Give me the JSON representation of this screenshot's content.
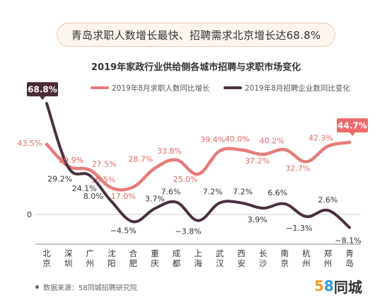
{
  "headline": "青岛求职人数增长最快、招聘需求北京增长达68.8%",
  "source_text": "数据来源：58同城招聘研究院",
  "logo": {
    "digit1": "5",
    "digit2": "8",
    "text": "同城"
  },
  "chart_data": {
    "type": "line",
    "title": "2019年家政行业供给侧各城市招聘与求职市场变化",
    "legend_position": "top",
    "zero_label": "0",
    "categories": [
      "北京",
      "深圳",
      "广州",
      "沈阳",
      "合肥",
      "重庆",
      "成都",
      "上海",
      "武汉",
      "西安",
      "长沙",
      "南京",
      "杭州",
      "郑州",
      "青岛"
    ],
    "category_lines": [
      [
        "北",
        "京"
      ],
      [
        "深",
        "圳"
      ],
      [
        "广",
        "州"
      ],
      [
        "沈",
        "阳"
      ],
      [
        "合",
        "肥"
      ],
      [
        "重",
        "庆"
      ],
      [
        "成",
        "都"
      ],
      [
        "上",
        "海"
      ],
      [
        "武",
        "汉"
      ],
      [
        "西",
        "安"
      ],
      [
        "长",
        "沙"
      ],
      [
        "南",
        "京"
      ],
      [
        "杭",
        "州"
      ],
      [
        "郑",
        "州"
      ],
      [
        "青",
        "岛"
      ]
    ],
    "series": [
      {
        "name": "2019年8月求职人数同比增长",
        "color": "#e77b7b",
        "values": [
          43.5,
          29.9,
          27.5,
          16.5,
          17.0,
          28.7,
          33.8,
          25.0,
          39.4,
          40.0,
          37.2,
          40.2,
          32.7,
          42.3,
          44.7
        ],
        "labels": [
          "43.5%",
          "29.9%",
          "27.5%",
          "16.5%",
          "17.0%",
          "28.7%",
          "33.8%",
          "25.0%",
          "39.4%",
          "40.0%",
          "37.2%",
          "40.2%",
          "32.7%",
          "42.3%",
          "44.7%"
        ]
      },
      {
        "name": "2019年8月招聘企业数同比变化",
        "color": "#4a3040",
        "values": [
          68.8,
          29.2,
          24.1,
          8.0,
          -4.5,
          3.7,
          7.6,
          -3.8,
          7.2,
          7.2,
          3.9,
          6.6,
          -1.3,
          2.6,
          -8.1
        ],
        "labels": [
          "68.8%",
          "29.2%",
          "24.1%",
          "8.0%",
          "−4.5%",
          "3.7%",
          "7.6%",
          "−3.8%",
          "7.2%",
          "7.2%",
          "3.9%",
          "6.6%",
          "−1.3%",
          "2.6%",
          "−8.1%"
        ]
      }
    ],
    "highlight": [
      {
        "series": 1,
        "index": 0,
        "color": "#4a2a35"
      },
      {
        "series": 0,
        "index": 14,
        "color": "#ee6a6a"
      }
    ]
  }
}
